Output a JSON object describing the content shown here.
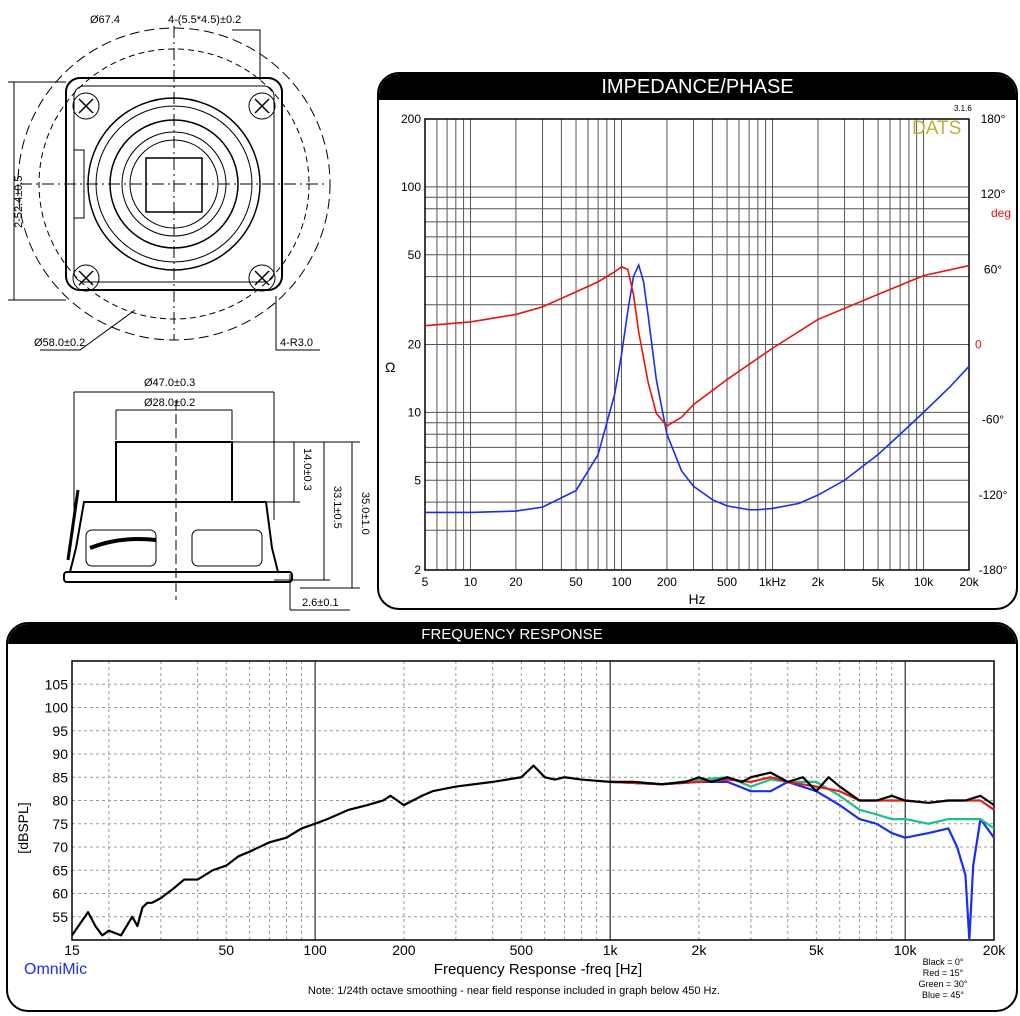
{
  "drawing": {
    "front_view": {
      "outer_dia": "Ø67.4",
      "holes": "4-(5.5*4.5)±0.2",
      "height_dim": "2-52.4±0.5",
      "bolt_dia": "Ø58.0±0.2",
      "corner_radius": "4-R3.0"
    },
    "side_view": {
      "frame_dia": "Ø47.0±0.3",
      "magnet_dia": "Ø28.0±0.2",
      "magnet_height": "14.0±0.3",
      "depth": "33.1±0.5",
      "total_depth": "35.0±1.0",
      "flange": "2.6±0.1"
    }
  },
  "impedance_chart": {
    "header": "IMPEDANCE/PHASE",
    "brand": "DATS",
    "version": "3.1.6",
    "xlabel": "Hz",
    "ylabel": "Ω",
    "phase_unit": "deg",
    "phase_ticks": [
      "180°",
      "120°",
      "60°",
      "0",
      "-60°",
      "-120°",
      "-180°"
    ],
    "colors": {
      "impedance": "#1a2ef0",
      "phase": "#e8140f",
      "brand": "#b8b23a"
    }
  },
  "fr_chart": {
    "header": "FREQUENCY RESPONSE",
    "xlabel": "Frequency Response -freq [Hz]",
    "ylabel": "[dBSPL]",
    "brand": "OmniMic",
    "note": "Note: 1/24th octave smoothing - near field response included in graph below 450 Hz.",
    "legend": [
      "Black = 0°",
      "Red = 15°",
      "Green = 30°",
      "Blue = 45°"
    ],
    "colors": {
      "black": "#000000",
      "red": "#e0201a",
      "green": "#1ec08a",
      "blue": "#1a2ef0"
    }
  },
  "chart_data": [
    {
      "type": "line",
      "title": "IMPEDANCE/PHASE",
      "xlabel": "Hz",
      "ylabel": "Ω",
      "xscale": "log",
      "yscale": "log",
      "xlim": [
        5,
        20000
      ],
      "ylim": [
        2,
        200
      ],
      "x_ticks": [
        "5",
        "10",
        "20",
        "50",
        "100",
        "200",
        "500",
        "1kHz",
        "2k",
        "5k",
        "10k",
        "20k"
      ],
      "y_ticks": [
        "2",
        "5",
        "10",
        "20",
        "50",
        "100",
        "200"
      ],
      "secondary_ylim": [
        -180,
        180
      ],
      "grid": true,
      "series": [
        {
          "name": "Impedance",
          "x": [
            5,
            10,
            20,
            30,
            50,
            70,
            90,
            100,
            110,
            120,
            130,
            140,
            150,
            170,
            200,
            250,
            300,
            400,
            500,
            700,
            800,
            1000,
            1500,
            2000,
            3000,
            5000,
            7000,
            10000,
            15000,
            20000
          ],
          "y": [
            3.6,
            3.6,
            3.65,
            3.8,
            4.5,
            6.5,
            12,
            18,
            28,
            40,
            45,
            38,
            27,
            14,
            8,
            5.5,
            4.7,
            4.1,
            3.85,
            3.7,
            3.7,
            3.75,
            3.95,
            4.3,
            5.0,
            6.5,
            8.0,
            10,
            13,
            16
          ]
        },
        {
          "name": "Phase",
          "x": [
            5,
            10,
            20,
            30,
            50,
            70,
            90,
            100,
            110,
            120,
            130,
            150,
            170,
            200,
            250,
            300,
            500,
            1000,
            2000,
            5000,
            10000,
            20000
          ],
          "y": [
            15,
            18,
            24,
            30,
            42,
            50,
            58,
            62,
            60,
            40,
            10,
            -30,
            -55,
            -65,
            -58,
            -48,
            -28,
            -3,
            20,
            40,
            55,
            63
          ]
        }
      ]
    },
    {
      "type": "line",
      "title": "FREQUENCY RESPONSE",
      "xlabel": "Frequency Response -freq [Hz]",
      "ylabel": "[dBSPL]",
      "xscale": "log",
      "xlim": [
        15,
        20000
      ],
      "ylim": [
        50,
        110
      ],
      "x_ticks": [
        "15",
        "50",
        "100",
        "200",
        "500",
        "1k",
        "2k",
        "5k",
        "10k",
        "20k"
      ],
      "y_ticks": [
        "55",
        "60",
        "65",
        "70",
        "75",
        "80",
        "85",
        "90",
        "95",
        "100",
        "105"
      ],
      "grid": true,
      "series": [
        {
          "name": "Black = 0°",
          "x": [
            15,
            17,
            18,
            19,
            20,
            22,
            24,
            25,
            26,
            27,
            28,
            30,
            33,
            36,
            40,
            45,
            50,
            55,
            60,
            70,
            80,
            90,
            100,
            110,
            130,
            150,
            170,
            180,
            190,
            200,
            230,
            250,
            300,
            400,
            500,
            550,
            580,
            600,
            650,
            700,
            800,
            1000,
            1200,
            1500,
            1800,
            2000,
            2200,
            2500,
            2800,
            3000,
            3500,
            4000,
            4500,
            5000,
            5500,
            6000,
            7000,
            8000,
            9000,
            10000,
            12000,
            14000,
            16000,
            18000,
            20000
          ],
          "y": [
            51,
            56,
            53,
            51,
            52,
            51,
            55,
            53,
            57,
            58,
            58,
            59,
            61,
            63,
            63,
            65,
            66,
            68,
            69,
            71,
            72,
            74,
            75,
            76,
            78,
            79,
            80,
            81,
            80,
            79,
            81,
            82,
            83,
            84,
            85,
            87.5,
            86,
            85,
            84.5,
            85,
            84.5,
            84,
            84,
            83.5,
            84,
            85,
            84,
            85,
            84,
            85,
            86,
            84,
            85,
            82,
            85,
            83,
            80,
            80,
            81,
            80,
            79.5,
            80,
            80,
            81,
            79
          ]
        },
        {
          "name": "Red = 15°",
          "x": [
            1000,
            1500,
            2000,
            2500,
            3000,
            3500,
            4000,
            5000,
            6000,
            7000,
            8000,
            9000,
            10000,
            12000,
            14000,
            16000,
            18000,
            20000
          ],
          "y": [
            84,
            83.5,
            84,
            84.5,
            84,
            85,
            84,
            83,
            82,
            80,
            80,
            80,
            80,
            79.5,
            80,
            80,
            80,
            78
          ]
        },
        {
          "name": "Green = 30°",
          "x": [
            1000,
            1500,
            2000,
            2500,
            3000,
            3500,
            4000,
            5000,
            6000,
            7000,
            8000,
            9000,
            10000,
            12000,
            14000,
            16000,
            18000,
            20000
          ],
          "y": [
            84,
            83.5,
            84.5,
            85,
            83,
            84.5,
            84,
            84,
            81,
            78,
            77,
            76,
            76,
            75,
            76,
            76,
            76,
            74
          ]
        },
        {
          "name": "Blue = 45°",
          "x": [
            1000,
            1500,
            2000,
            2500,
            3000,
            3500,
            4000,
            5000,
            6000,
            7000,
            8000,
            9000,
            10000,
            12000,
            14000,
            15000,
            16000,
            16500,
            17000,
            18000,
            20000
          ],
          "y": [
            84,
            83.5,
            84,
            84,
            82,
            82,
            84,
            82,
            79,
            76,
            75,
            73,
            72,
            73,
            74,
            70,
            64,
            50,
            66,
            76,
            72
          ]
        }
      ]
    }
  ]
}
